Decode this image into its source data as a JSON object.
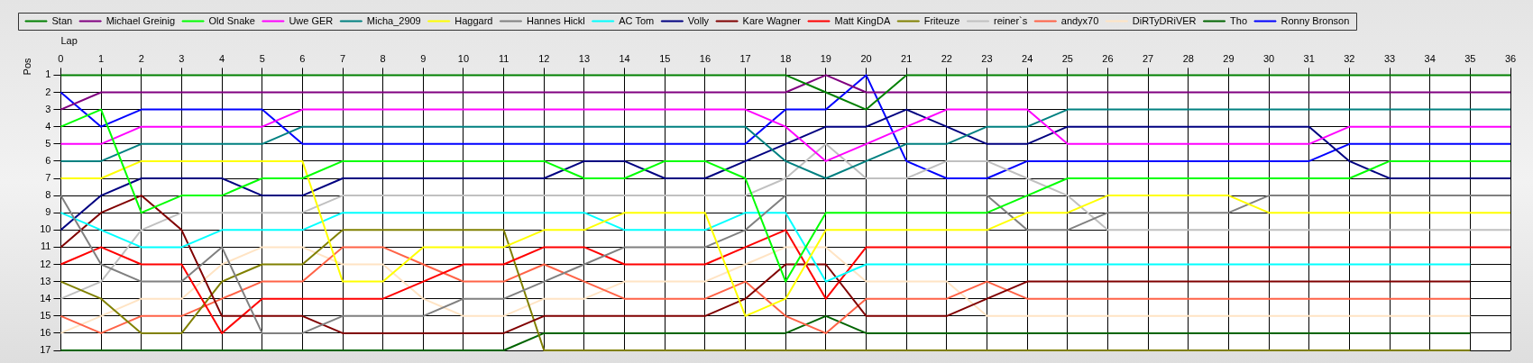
{
  "chart_data": {
    "type": "line",
    "xlabel": "Lap",
    "ylabel": "Pos",
    "x": [
      0,
      1,
      2,
      3,
      4,
      5,
      6,
      7,
      8,
      9,
      10,
      11,
      12,
      13,
      14,
      15,
      16,
      17,
      18,
      19,
      20,
      21,
      22,
      23,
      24,
      25,
      26,
      27,
      28,
      29,
      30,
      31,
      32,
      33,
      34,
      35,
      36
    ],
    "xlim": [
      0,
      36
    ],
    "xticks": [
      0,
      1,
      2,
      3,
      4,
      5,
      6,
      7,
      8,
      9,
      10,
      11,
      12,
      13,
      14,
      15,
      16,
      17,
      18,
      19,
      20,
      21,
      22,
      23,
      24,
      25,
      26,
      27,
      28,
      29,
      30,
      31,
      32,
      33,
      34,
      35,
      36
    ],
    "ylim": [
      17,
      1
    ],
    "yticks": [
      1,
      2,
      3,
      4,
      5,
      6,
      7,
      8,
      9,
      10,
      11,
      12,
      13,
      14,
      15,
      16,
      17
    ],
    "grid": true,
    "legend": "top",
    "marker": "none",
    "line_style": "solid",
    "series": [
      {
        "name": "Stan",
        "color": "#008000",
        "values": [
          1,
          1,
          1,
          1,
          1,
          1,
          1,
          1,
          1,
          1,
          1,
          1,
          1,
          1,
          1,
          1,
          1,
          1,
          1,
          2,
          3,
          1,
          1,
          1,
          1,
          1,
          1,
          1,
          1,
          1,
          1,
          1,
          1,
          1,
          1,
          1,
          1
        ]
      },
      {
        "name": "Michael Greinig",
        "color": "#800080",
        "values": [
          3,
          2,
          2,
          2,
          2,
          2,
          2,
          2,
          2,
          2,
          2,
          2,
          2,
          2,
          2,
          2,
          2,
          2,
          2,
          1,
          2,
          2,
          2,
          2,
          2,
          2,
          2,
          2,
          2,
          2,
          2,
          2,
          2,
          2,
          2,
          2,
          2
        ]
      },
      {
        "name": "Old Snake",
        "color": "#00ff00",
        "values": [
          4,
          3,
          9,
          8,
          8,
          7,
          7,
          6,
          6,
          6,
          6,
          6,
          6,
          7,
          7,
          6,
          6,
          7,
          13,
          9,
          9,
          9,
          9,
          9,
          8,
          7,
          7,
          7,
          7,
          7,
          7,
          7,
          7,
          6,
          6,
          6,
          6
        ]
      },
      {
        "name": "Uwe GER",
        "color": "#ff00ff",
        "values": [
          5,
          5,
          4,
          4,
          4,
          4,
          3,
          3,
          3,
          3,
          3,
          3,
          3,
          3,
          3,
          3,
          3,
          3,
          4,
          6,
          5,
          4,
          3,
          3,
          3,
          5,
          5,
          5,
          5,
          5,
          5,
          5,
          4,
          4,
          4,
          4,
          4
        ]
      },
      {
        "name": "Micha_2909",
        "color": "#008080",
        "values": [
          6,
          6,
          5,
          5,
          5,
          5,
          4,
          4,
          4,
          4,
          4,
          4,
          4,
          4,
          4,
          4,
          4,
          4,
          6,
          7,
          6,
          5,
          5,
          4,
          4,
          3,
          3,
          3,
          3,
          3,
          3,
          3,
          3,
          3,
          3,
          3,
          3
        ]
      },
      {
        "name": "Haggard",
        "color": "#ffff00",
        "values": [
          7,
          7,
          6,
          6,
          6,
          6,
          6,
          13,
          13,
          11,
          11,
          11,
          10,
          10,
          9,
          9,
          9,
          15,
          14,
          10,
          10,
          10,
          10,
          10,
          9,
          9,
          8,
          8,
          8,
          8,
          9,
          9,
          9,
          9,
          9,
          9,
          9
        ]
      },
      {
        "name": "Hannes Hickl",
        "color": "#808080",
        "values": [
          8,
          12,
          13,
          13,
          11,
          16,
          16,
          15,
          15,
          15,
          14,
          14,
          13,
          12,
          11,
          11,
          11,
          10,
          8,
          8,
          8,
          8,
          8,
          8,
          10,
          10,
          9,
          9,
          9,
          9,
          8,
          8,
          8,
          8,
          8,
          8,
          8
        ]
      },
      {
        "name": "AC Tom",
        "color": "#00ffff",
        "values": [
          9,
          10,
          11,
          11,
          10,
          10,
          10,
          9,
          9,
          9,
          9,
          9,
          9,
          9,
          10,
          10,
          10,
          9,
          9,
          13,
          12,
          12,
          12,
          12,
          12,
          12,
          12,
          12,
          12,
          12,
          12,
          12,
          12,
          12,
          12,
          12,
          null
        ]
      },
      {
        "name": "Volly",
        "color": "#000080",
        "values": [
          10,
          8,
          7,
          7,
          7,
          8,
          8,
          7,
          7,
          7,
          7,
          7,
          7,
          6,
          6,
          7,
          7,
          6,
          5,
          4,
          4,
          3,
          4,
          5,
          5,
          4,
          4,
          4,
          4,
          4,
          4,
          4,
          6,
          7,
          7,
          7,
          7
        ]
      },
      {
        "name": "Kare Wagner",
        "color": "#800000",
        "values": [
          11,
          9,
          8,
          10,
          15,
          15,
          15,
          16,
          16,
          16,
          16,
          16,
          15,
          15,
          15,
          15,
          15,
          14,
          12,
          12,
          15,
          15,
          15,
          14,
          13,
          13,
          13,
          13,
          13,
          13,
          13,
          13,
          13,
          13,
          13,
          13,
          null
        ]
      },
      {
        "name": "Matt KingDA",
        "color": "#ff0000",
        "values": [
          12,
          11,
          12,
          12,
          16,
          14,
          14,
          14,
          14,
          13,
          12,
          12,
          11,
          11,
          12,
          12,
          12,
          11,
          10,
          14,
          11,
          11,
          11,
          11,
          11,
          11,
          11,
          11,
          11,
          11,
          11,
          11,
          11,
          11,
          11,
          11,
          11
        ]
      },
      {
        "name": "Friteuze",
        "color": "#808000",
        "values": [
          13,
          14,
          16,
          16,
          13,
          12,
          12,
          10,
          10,
          10,
          10,
          10,
          17,
          17,
          17,
          17,
          17,
          17,
          17,
          17,
          17,
          17,
          17,
          17,
          17,
          17,
          17,
          17,
          17,
          17,
          17,
          17,
          17,
          17,
          17,
          17,
          null
        ]
      },
      {
        "name": "reiner`s",
        "color": "#c0c0c0",
        "values": [
          14,
          13,
          10,
          9,
          9,
          9,
          9,
          8,
          8,
          8,
          8,
          8,
          8,
          8,
          8,
          8,
          8,
          8,
          7,
          5,
          7,
          7,
          6,
          6,
          7,
          8,
          10,
          10,
          10,
          10,
          10,
          10,
          10,
          10,
          10,
          10,
          10
        ]
      },
      {
        "name": "andyx70",
        "color": "#ff6347",
        "values": [
          15,
          16,
          15,
          15,
          14,
          13,
          13,
          11,
          11,
          12,
          13,
          13,
          12,
          13,
          14,
          14,
          14,
          13,
          15,
          16,
          14,
          14,
          14,
          13,
          14,
          14,
          14,
          14,
          14,
          14,
          14,
          14,
          14,
          14,
          14,
          14,
          null
        ]
      },
      {
        "name": "DiRTyDRiVER",
        "color": "#ffe4c4",
        "values": [
          16,
          15,
          14,
          14,
          12,
          11,
          11,
          12,
          12,
          14,
          15,
          15,
          14,
          14,
          13,
          13,
          13,
          12,
          11,
          11,
          13,
          13,
          13,
          15,
          15,
          15,
          15,
          15,
          15,
          15,
          15,
          15,
          15,
          15,
          15,
          15,
          null
        ]
      },
      {
        "name": "Tho",
        "color": "#006400",
        "values": [
          17,
          17,
          17,
          17,
          17,
          17,
          17,
          17,
          17,
          17,
          17,
          17,
          16,
          16,
          16,
          16,
          16,
          16,
          16,
          15,
          16,
          16,
          16,
          16,
          16,
          16,
          16,
          16,
          16,
          16,
          16,
          16,
          16,
          16,
          16,
          16,
          null
        ]
      },
      {
        "name": "Ronny Bronson",
        "color": "#0000ff",
        "values": [
          2,
          4,
          3,
          3,
          3,
          3,
          5,
          5,
          5,
          5,
          5,
          5,
          5,
          5,
          5,
          5,
          5,
          5,
          3,
          3,
          1,
          6,
          7,
          7,
          6,
          6,
          6,
          6,
          6,
          6,
          6,
          6,
          5,
          5,
          5,
          5,
          5
        ]
      }
    ]
  }
}
